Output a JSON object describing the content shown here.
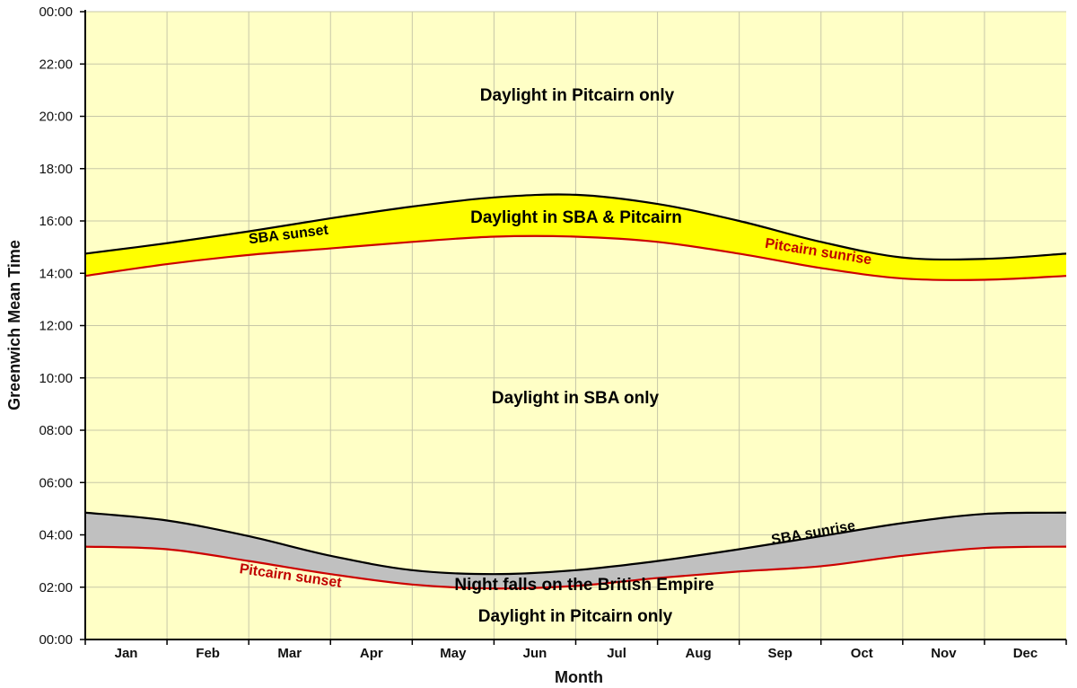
{
  "chart_data": {
    "type": "line",
    "title": "",
    "xlabel": "Month",
    "ylabel": "Greenwich Mean Time",
    "ylim": [
      "00:00",
      "24:00"
    ],
    "y_ticks": [
      "00:00",
      "02:00",
      "04:00",
      "06:00",
      "08:00",
      "10:00",
      "12:00",
      "14:00",
      "16:00",
      "18:00",
      "20:00",
      "22:00",
      "00:00"
    ],
    "categories": [
      "Jan",
      "Feb",
      "Mar",
      "Apr",
      "May",
      "Jun",
      "Jul",
      "Aug",
      "Sep",
      "Oct",
      "Nov",
      "Dec"
    ],
    "grid": true,
    "colors": {
      "background": "#ffffc6",
      "grid": "#c8c8a8",
      "overlap_fill": "#ffff00",
      "night_fill": "#c0c0c0",
      "sba_line": "#000000",
      "pitcairn_line": "#cc0000"
    },
    "series": [
      {
        "name": "SBA sunset",
        "color": "#000000",
        "x": [
          "Jan 1",
          "Feb 1",
          "Mar 1",
          "Apr 1",
          "May 1",
          "Jun 1",
          "Jul 1",
          "Aug 1",
          "Sep 1",
          "Oct 1",
          "Nov 1",
          "Dec 1",
          "Dec 31"
        ],
        "values": [
          14.75,
          15.15,
          15.6,
          16.1,
          16.55,
          16.9,
          17.0,
          16.65,
          16.0,
          15.2,
          14.6,
          14.55,
          14.75
        ]
      },
      {
        "name": "Pitcairn sunrise",
        "color": "#cc0000",
        "x": [
          "Jan 1",
          "Feb 1",
          "Mar 1",
          "Apr 1",
          "May 1",
          "Jun 1",
          "Jul 1",
          "Aug 1",
          "Sep 1",
          "Oct 1",
          "Nov 1",
          "Dec 1",
          "Dec 31"
        ],
        "values": [
          13.9,
          14.35,
          14.7,
          14.95,
          15.2,
          15.4,
          15.4,
          15.2,
          14.75,
          14.2,
          13.8,
          13.75,
          13.9
        ]
      },
      {
        "name": "SBA sunrise",
        "color": "#000000",
        "x": [
          "Jan 1",
          "Feb 1",
          "Mar 1",
          "Apr 1",
          "May 1",
          "Jun 1",
          "Jul 1",
          "Aug 1",
          "Sep 1",
          "Oct 1",
          "Nov 1",
          "Dec 1",
          "Dec 31"
        ],
        "values": [
          4.85,
          4.55,
          3.95,
          3.2,
          2.65,
          2.5,
          2.65,
          3.0,
          3.45,
          3.95,
          4.45,
          4.8,
          4.85
        ]
      },
      {
        "name": "Pitcairn sunset",
        "color": "#cc0000",
        "x": [
          "Jan 1",
          "Feb 1",
          "Mar 1",
          "Apr 1",
          "May 1",
          "Jun 1",
          "Jul 1",
          "Aug 1",
          "Sep 1",
          "Oct 1",
          "Nov 1",
          "Dec 1",
          "Dec 31"
        ],
        "values": [
          3.55,
          3.45,
          3.0,
          2.5,
          2.1,
          1.95,
          2.05,
          2.35,
          2.6,
          2.8,
          3.2,
          3.5,
          3.55
        ]
      }
    ],
    "annotations": {
      "daylight_pitcairn_top": "Daylight in Pitcairn only",
      "daylight_both": "Daylight in SBA & Pitcairn",
      "daylight_sba": "Daylight in SBA only",
      "night_falls": "Night falls on the British Empire",
      "daylight_pitcairn_bottom": "Daylight in Pitcairn only",
      "sba_sunset": "SBA sunset",
      "pitcairn_sunrise": "Pitcairn sunrise",
      "sba_sunrise": "SBA sunrise",
      "pitcairn_sunset": "Pitcairn sunset"
    }
  }
}
